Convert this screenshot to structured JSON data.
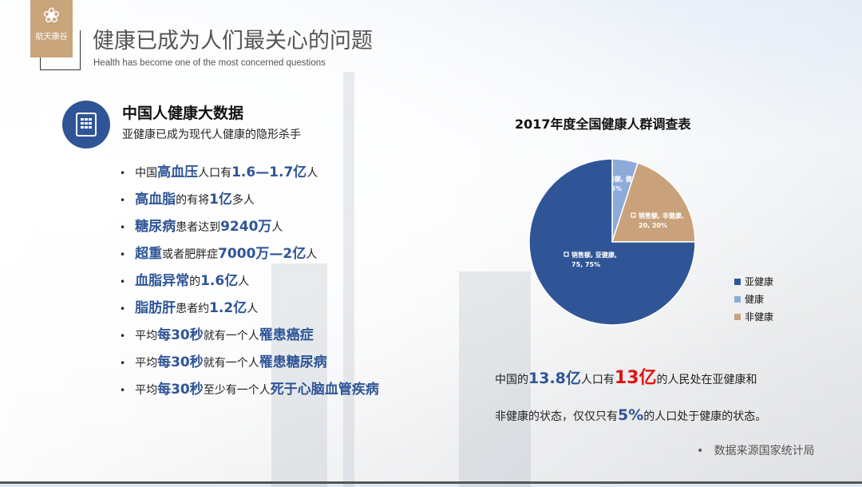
{
  "logo": {
    "name": "航天康谷"
  },
  "header": {
    "title": "健康已成为人们最关心的问题",
    "subtitle": "Health has become one of the most concerned questions"
  },
  "section": {
    "title": "中国人健康大数据",
    "subtitle": "亚健康已成为现代人健康的隐形杀手",
    "icon": "document-icon"
  },
  "facts": [
    [
      {
        "t": "中国",
        "e": false
      },
      {
        "t": "高血压",
        "e": true
      },
      {
        "t": "人口有",
        "e": false
      },
      {
        "t": "1.6—1.7亿",
        "e": true
      },
      {
        "t": "人",
        "e": false
      }
    ],
    [
      {
        "t": "高血脂",
        "e": true
      },
      {
        "t": "的有将",
        "e": false
      },
      {
        "t": "1亿",
        "e": true
      },
      {
        "t": "多人",
        "e": false
      }
    ],
    [
      {
        "t": "糖尿病",
        "e": true
      },
      {
        "t": "患者达到",
        "e": false
      },
      {
        "t": "9240万",
        "e": true
      },
      {
        "t": "人",
        "e": false
      }
    ],
    [
      {
        "t": "超重",
        "e": true
      },
      {
        "t": "或者肥胖症",
        "e": false
      },
      {
        "t": "7000万—2亿",
        "e": true
      },
      {
        "t": "人",
        "e": false
      }
    ],
    [
      {
        "t": "血脂异常",
        "e": true
      },
      {
        "t": "的",
        "e": false
      },
      {
        "t": "1.6亿",
        "e": true
      },
      {
        "t": "人",
        "e": false
      }
    ],
    [
      {
        "t": "脂肪肝",
        "e": true
      },
      {
        "t": "患者约",
        "e": false
      },
      {
        "t": "1.2亿",
        "e": true
      },
      {
        "t": "人",
        "e": false
      }
    ],
    [
      {
        "t": "平均",
        "e": false
      },
      {
        "t": "每30秒",
        "e": true
      },
      {
        "t": "就有一个人",
        "e": false
      },
      {
        "t": "罹患癌症",
        "e": true
      }
    ],
    [
      {
        "t": "平均",
        "e": false
      },
      {
        "t": "每30秒",
        "e": true
      },
      {
        "t": "就有一个人",
        "e": false
      },
      {
        "t": "罹患糖尿病",
        "e": true
      }
    ],
    [
      {
        "t": "平均",
        "e": false
      },
      {
        "t": "每30秒",
        "e": true
      },
      {
        "t": "至少有一个人",
        "e": false
      },
      {
        "t": "死于心脑血管疾病",
        "e": true
      }
    ]
  ],
  "chart_data": {
    "type": "pie",
    "title": "2017年度全国健康人群调查表",
    "series_name": "销售额",
    "categories": [
      "亚健康",
      "健康",
      "非健康"
    ],
    "values": [
      75,
      5,
      20
    ],
    "percents": [
      "75%",
      "5%",
      "20%"
    ],
    "colors": [
      "#2f5597",
      "#8eaadb",
      "#c9a27b"
    ],
    "data_labels": [
      "销售额, 亚健康, 75, 75%",
      "销售额, 健康, 5, 5%",
      "销售额, 非健康, 20, 20%"
    ],
    "legend": "right"
  },
  "summary": {
    "line1": [
      {
        "t": "中国的",
        "c": ""
      },
      {
        "t": "13.8亿",
        "c": "big-blue"
      },
      {
        "t": "人口有",
        "c": ""
      },
      {
        "t": "13亿",
        "c": "big-red"
      },
      {
        "t": "的人民处在亚健康和",
        "c": ""
      }
    ],
    "line2": [
      {
        "t": "非健康的状态，仅仅只有",
        "c": ""
      },
      {
        "t": "5%",
        "c": "big-blue"
      },
      {
        "t": "的人口处于健康的状态。",
        "c": ""
      }
    ]
  },
  "source": "数据来源国家统计局"
}
